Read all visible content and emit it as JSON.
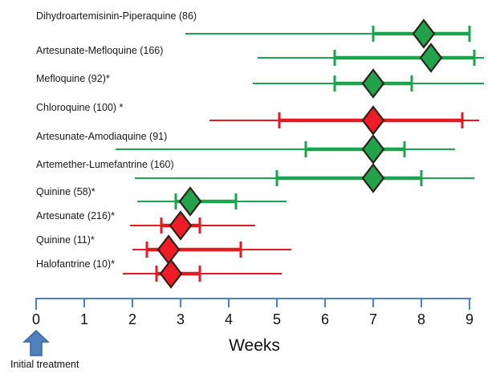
{
  "chart_data": {
    "type": "forest",
    "description": "Horizontal range plot of time to event in weeks for antimalarial treatments; diamond = point estimate, inner tick marks = inner range, line = full range",
    "xlabel": "Weeks",
    "x_axis": {
      "min": 0,
      "max": 9,
      "tick_labels": [
        "0",
        "1",
        "2",
        "3",
        "4",
        "5",
        "6",
        "7",
        "8",
        "9"
      ],
      "grid": false
    },
    "annotation": "Initial treatment",
    "colors": {
      "green_line": "#1ca350",
      "green_diamond": "#22a24b",
      "red_line": "#e31a1f",
      "red_diamond": "#ee1c24",
      "diamond_outline": "#2a211a",
      "axis_blue": "#4f81bd",
      "arrow_fill": "#4f81bd",
      "arrow_outline": "#3a6596"
    },
    "series": [
      {
        "label": "Dihydroartemisinin-Piperaquine (86)",
        "color": "green",
        "whisker_min": 3.1,
        "q1": 7.0,
        "median": 8.05,
        "q3": 9.0,
        "whisker_max": 9.0
      },
      {
        "label": "Artesunate-Mefloquine (166)",
        "color": "green",
        "whisker_min": 4.6,
        "q1": 6.2,
        "median": 8.2,
        "q3": 9.1,
        "whisker_max": 9.3
      },
      {
        "label": "Mefloquine (92)*",
        "color": "green",
        "whisker_min": 4.5,
        "q1": 6.2,
        "median": 7.0,
        "q3": 7.8,
        "whisker_max": 9.3
      },
      {
        "label": "Chloroquine (100) *",
        "color": "red",
        "whisker_min": 3.6,
        "q1": 5.05,
        "median": 7.0,
        "q3": 8.85,
        "whisker_max": 9.2
      },
      {
        "label": "Artesunate-Amodiaquine (91)",
        "color": "green",
        "whisker_min": 1.65,
        "q1": 5.6,
        "median": 7.0,
        "q3": 7.65,
        "whisker_max": 8.7
      },
      {
        "label": "Artemether-Lumefantrine (160)",
        "color": "green",
        "whisker_min": 2.05,
        "q1": 5.0,
        "median": 7.0,
        "q3": 8.0,
        "whisker_max": 9.1
      },
      {
        "label": "Quinine (58)*",
        "color": "green",
        "whisker_min": 2.1,
        "q1": 2.9,
        "median": 3.2,
        "q3": 4.15,
        "whisker_max": 5.2
      },
      {
        "label": "Artesunate (216)*",
        "color": "red",
        "whisker_min": 1.95,
        "q1": 2.6,
        "median": 3.0,
        "q3": 3.4,
        "whisker_max": 4.55
      },
      {
        "label": "Quinine (11)*",
        "color": "red",
        "whisker_min": 2.0,
        "q1": 2.3,
        "median": 2.75,
        "q3": 4.25,
        "whisker_max": 5.3
      },
      {
        "label": "Halofantrine (10)*",
        "color": "red",
        "whisker_min": 1.8,
        "q1": 2.5,
        "median": 2.8,
        "q3": 3.4,
        "whisker_max": 5.1
      }
    ]
  }
}
